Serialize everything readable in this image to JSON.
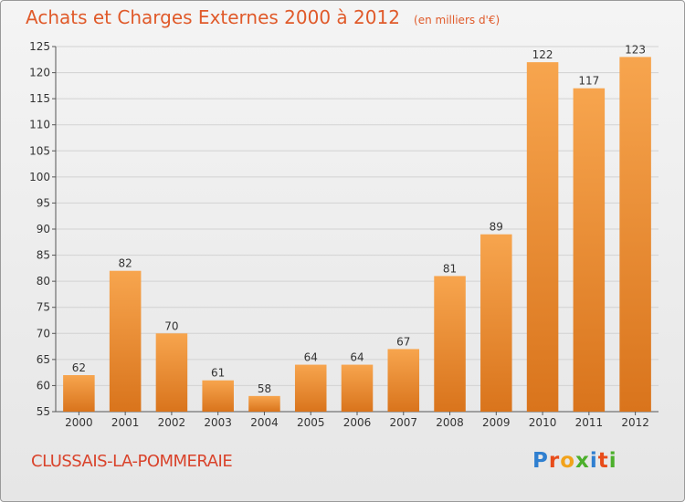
{
  "chart_data": {
    "type": "bar",
    "title": "Achats et Charges Externes 2000 à 2012",
    "subtitle": "(en milliers d'€)",
    "categories": [
      "2000",
      "2001",
      "2002",
      "2003",
      "2004",
      "2005",
      "2006",
      "2007",
      "2008",
      "2009",
      "2010",
      "2011",
      "2012"
    ],
    "values": [
      62,
      82,
      70,
      61,
      58,
      64,
      64,
      67,
      81,
      89,
      122,
      117,
      123
    ],
    "ylim": [
      55,
      125
    ],
    "yticks": [
      55,
      60,
      65,
      70,
      75,
      80,
      85,
      90,
      95,
      100,
      105,
      110,
      115,
      120,
      125
    ],
    "grid": true,
    "xlabel": "",
    "ylabel": "",
    "bar_color_light": "#f7a54e",
    "bar_color_dark": "#d9741c"
  },
  "location": "CLUSSAIS-LA-POMMERAIE",
  "brand": {
    "letters": [
      "P",
      "r",
      "o",
      "x",
      "i",
      "t",
      "i"
    ],
    "colors": [
      "#2f7fd0",
      "#e84c1a",
      "#f2a31b",
      "#4caf2c",
      "#2f7fd0",
      "#e84c1a",
      "#4caf2c"
    ]
  }
}
